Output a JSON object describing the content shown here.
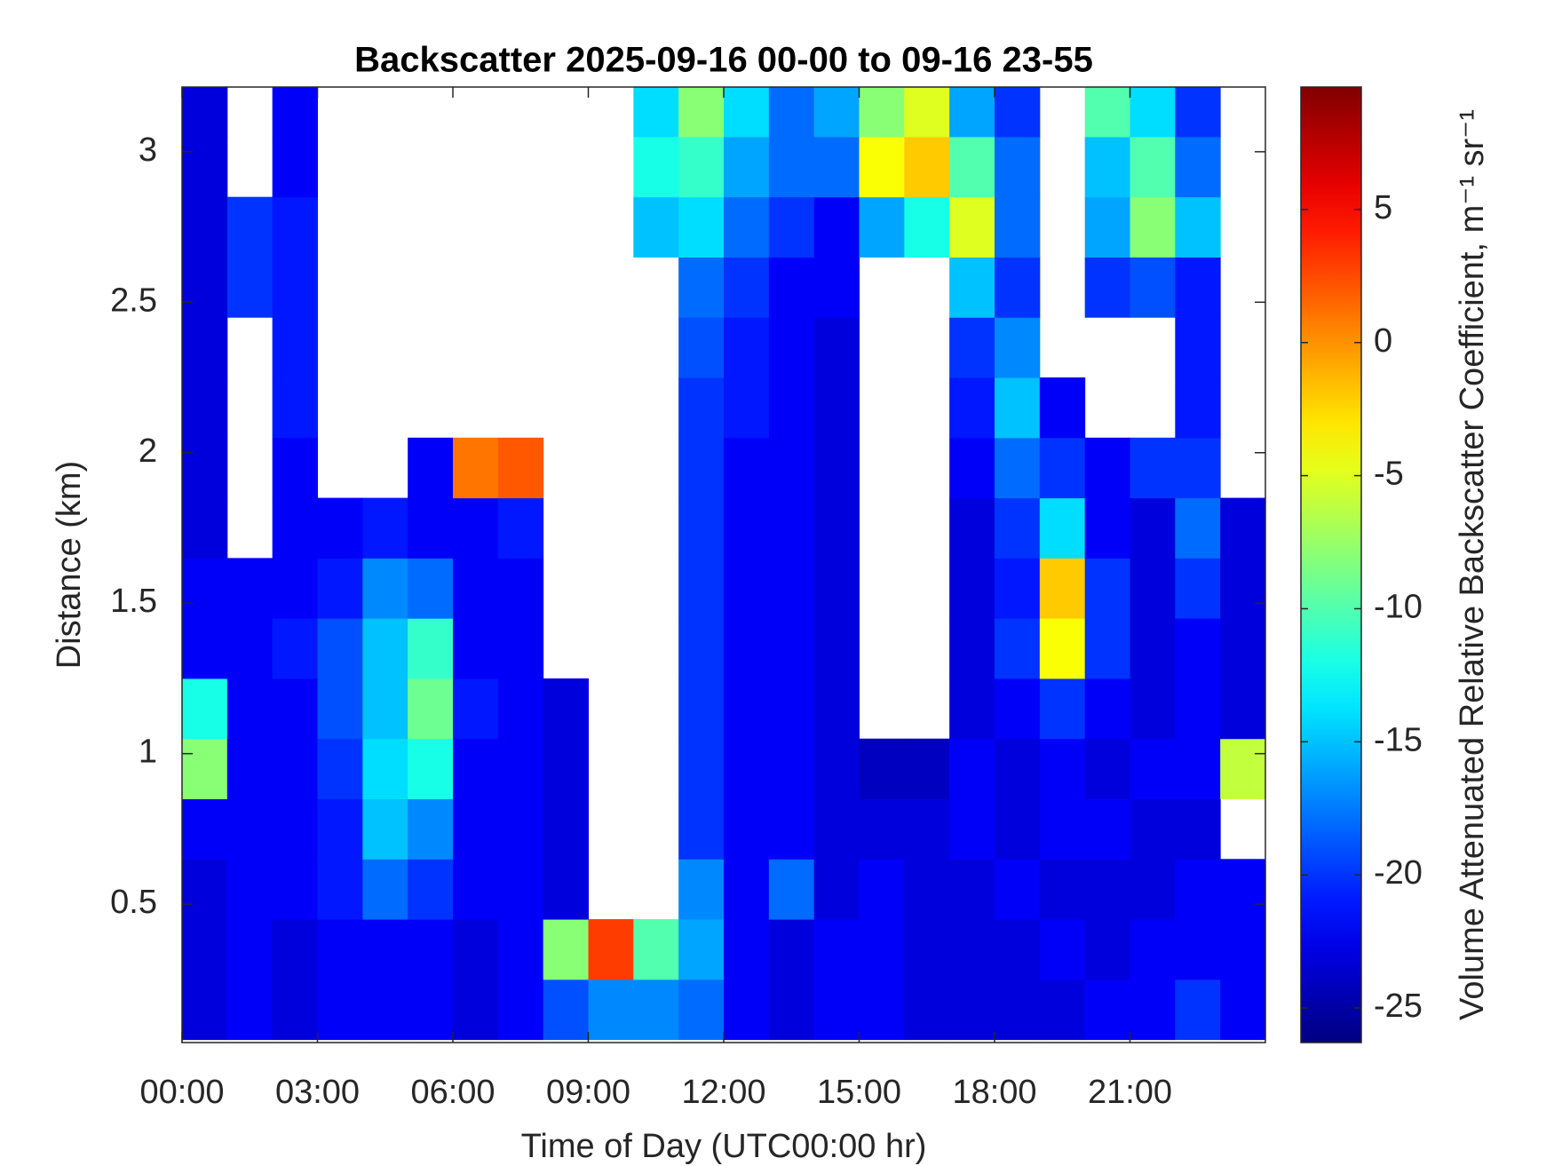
{
  "chart_data": {
    "type": "heatmap",
    "title": "Backscatter 2025-09-16 00-00 to 09-16 23-55",
    "x_label": "Time of Day (UTC00:00 hr)",
    "y_label": "Distance (km)",
    "colorbar_label": "Volume Attenuated Relative Backscatter Coefficient, m⁻¹ sr⁻¹",
    "colormap": "jet",
    "x": [
      0.5,
      1.5,
      2.5,
      3.5,
      4.5,
      5.5,
      6.5,
      7.5,
      8.5,
      9.5,
      10.5,
      11.5,
      12.5,
      13.5,
      14.5,
      15.5,
      16.5,
      17.5,
      18.5,
      19.5,
      20.5,
      21.5,
      22.5,
      23.5
    ],
    "y": [
      0.15,
      0.35,
      0.55,
      0.75,
      0.95,
      1.15,
      1.35,
      1.55,
      1.75,
      1.95,
      2.15,
      2.35,
      2.55,
      2.75,
      2.95,
      3.15
    ],
    "z": [
      [
        -23,
        -22,
        -23,
        -22,
        -22,
        -22,
        -23,
        -22,
        -19,
        -17,
        -17,
        -18,
        -22,
        -23,
        -22,
        -22,
        -23,
        -23,
        -23,
        -23,
        -22,
        -22,
        -20,
        -22
      ],
      [
        -23,
        -22,
        -23,
        -22,
        -22,
        -22,
        -23,
        -22,
        -8,
        3,
        -10,
        -16,
        -22,
        -23,
        -22,
        -22,
        -23,
        -23,
        -23,
        -22,
        -23,
        -22,
        -22,
        -22
      ],
      [
        -23,
        -22,
        -22,
        -21,
        -18,
        -20,
        -22,
        -22,
        -23,
        null,
        null,
        -17,
        -22,
        -18,
        -23,
        -22,
        -23,
        -23,
        -22,
        -23,
        -23,
        -23,
        -22,
        -22
      ],
      [
        -22,
        -22,
        -22,
        -21,
        -15,
        -17,
        -22,
        -22,
        -23,
        null,
        null,
        -20,
        -22,
        -22,
        -23,
        -23,
        -23,
        -22,
        -23,
        -22,
        -22,
        -23,
        -23,
        null
      ],
      [
        -8,
        -22,
        -22,
        -20,
        -14,
        -12,
        -22,
        -22,
        -23,
        null,
        null,
        -20,
        -22,
        -22,
        -23,
        -24,
        -24,
        -22,
        -23,
        -22,
        -23,
        -22,
        -22,
        -6
      ],
      [
        -12,
        -22,
        -22,
        -19,
        -15,
        -9,
        -21,
        -22,
        -23,
        null,
        null,
        -20,
        -22,
        -22,
        -23,
        null,
        null,
        -23,
        -22,
        -20,
        -22,
        -23,
        -22,
        -23
      ],
      [
        -22,
        -22,
        -21,
        -19,
        -15,
        -11,
        -22,
        -22,
        null,
        null,
        null,
        -20,
        -22,
        -22,
        -23,
        null,
        null,
        -23,
        -20,
        -4,
        -20,
        -23,
        -22,
        -23
      ],
      [
        -22,
        -22,
        -22,
        -21,
        -17,
        -18,
        -22,
        -22,
        null,
        null,
        null,
        -20,
        -22,
        -22,
        -23,
        null,
        null,
        -23,
        -21,
        -2,
        -20,
        -23,
        -20,
        -23
      ],
      [
        -23,
        null,
        -22,
        -22,
        -21,
        -22,
        -22,
        -21,
        null,
        null,
        null,
        -20,
        -22,
        -22,
        -23,
        null,
        null,
        -23,
        -20,
        -14,
        -22,
        -23,
        -18,
        -23
      ],
      [
        -23,
        null,
        -22,
        null,
        null,
        -22,
        1,
        2,
        null,
        null,
        null,
        -20,
        -22,
        -22,
        -23,
        null,
        null,
        -22,
        -18,
        -20,
        -22,
        -20,
        -20,
        null
      ],
      [
        -23,
        null,
        -21,
        null,
        null,
        null,
        null,
        null,
        null,
        null,
        null,
        -20,
        -21,
        -22,
        -23,
        null,
        null,
        -21,
        -15,
        -22,
        null,
        null,
        -21,
        null
      ],
      [
        -23,
        null,
        -21,
        null,
        null,
        null,
        null,
        null,
        null,
        null,
        null,
        -19,
        -21,
        -22,
        -23,
        null,
        null,
        -20,
        -17,
        null,
        null,
        null,
        -21,
        null
      ],
      [
        -23,
        -20,
        -21,
        null,
        null,
        null,
        null,
        null,
        null,
        null,
        null,
        -18,
        -20,
        -22,
        -22,
        null,
        null,
        -15,
        -20,
        null,
        -20,
        -19,
        -21,
        null
      ],
      [
        -23,
        -20,
        -21,
        null,
        null,
        null,
        null,
        null,
        null,
        null,
        -15,
        -14,
        -18,
        -20,
        -22,
        -16,
        -12,
        -5,
        -18,
        null,
        -16,
        -8,
        -15,
        null
      ],
      [
        -23,
        null,
        -22,
        null,
        null,
        null,
        null,
        null,
        null,
        null,
        -12,
        -11,
        -16,
        -18,
        -18,
        -4,
        -2,
        -10,
        -18,
        null,
        -15,
        -10,
        -18,
        null
      ],
      [
        -23,
        null,
        -22,
        null,
        null,
        null,
        null,
        null,
        null,
        null,
        -14,
        -8,
        -14,
        -18,
        -16,
        -8,
        -5,
        -16,
        -20,
        null,
        -10,
        -14,
        -20,
        null
      ]
    ],
    "xlim": [
      0,
      24
    ],
    "xticks": [
      {
        "value": 0,
        "label": "00:00"
      },
      {
        "value": 3,
        "label": "03:00"
      },
      {
        "value": 6,
        "label": "06:00"
      },
      {
        "value": 9,
        "label": "09:00"
      },
      {
        "value": 12,
        "label": "12:00"
      },
      {
        "value": 15,
        "label": "15:00"
      },
      {
        "value": 18,
        "label": "18:00"
      },
      {
        "value": 21,
        "label": "21:00"
      }
    ],
    "ylim": [
      0.04,
      3.215
    ],
    "yticks": [
      0.5,
      1,
      1.5,
      2,
      2.5,
      3
    ],
    "clim": [
      -26.3,
      9.6
    ],
    "cticks": [
      -25,
      -20,
      -15,
      -10,
      -5,
      0,
      5
    ]
  }
}
